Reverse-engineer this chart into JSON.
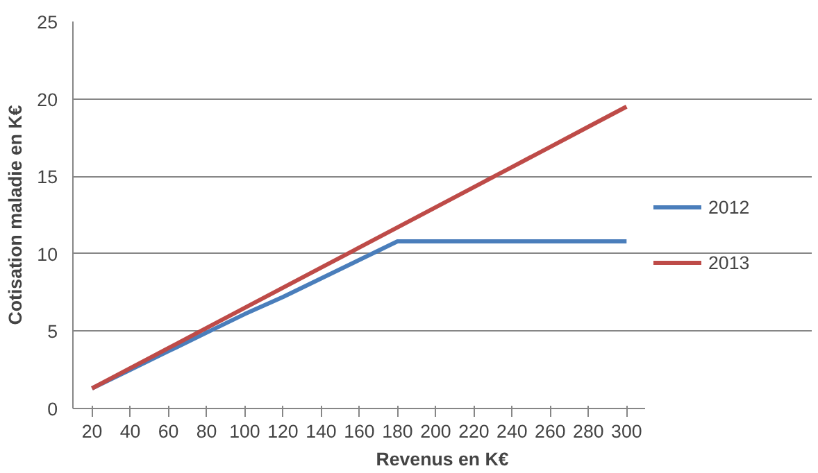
{
  "chart_data": {
    "type": "line",
    "xlabel": "Revenus en K€",
    "ylabel": "Cotisation maladie en K€",
    "categories": [
      "20",
      "40",
      "60",
      "80",
      "100",
      "120",
      "140",
      "160",
      "180",
      "200",
      "220",
      "240",
      "260",
      "280",
      "300"
    ],
    "series": [
      {
        "name": "2012",
        "color": "#4a7ebb",
        "values": [
          1.3,
          2.5,
          3.7,
          4.9,
          6.1,
          7.2,
          8.4,
          9.6,
          10.8,
          10.8,
          10.8,
          10.8,
          10.8,
          10.8,
          10.8
        ]
      },
      {
        "name": "2013",
        "color": "#be4b48",
        "values": [
          1.3,
          2.6,
          3.9,
          5.2,
          6.5,
          7.8,
          9.1,
          10.4,
          11.7,
          13.0,
          14.3,
          15.6,
          16.9,
          18.2,
          19.5
        ]
      }
    ],
    "ylim": [
      0,
      25
    ],
    "yticks": [
      0,
      5,
      10,
      15,
      20,
      25
    ],
    "grid": "y",
    "legend": "right",
    "marker": "none",
    "line_style": "solid"
  }
}
